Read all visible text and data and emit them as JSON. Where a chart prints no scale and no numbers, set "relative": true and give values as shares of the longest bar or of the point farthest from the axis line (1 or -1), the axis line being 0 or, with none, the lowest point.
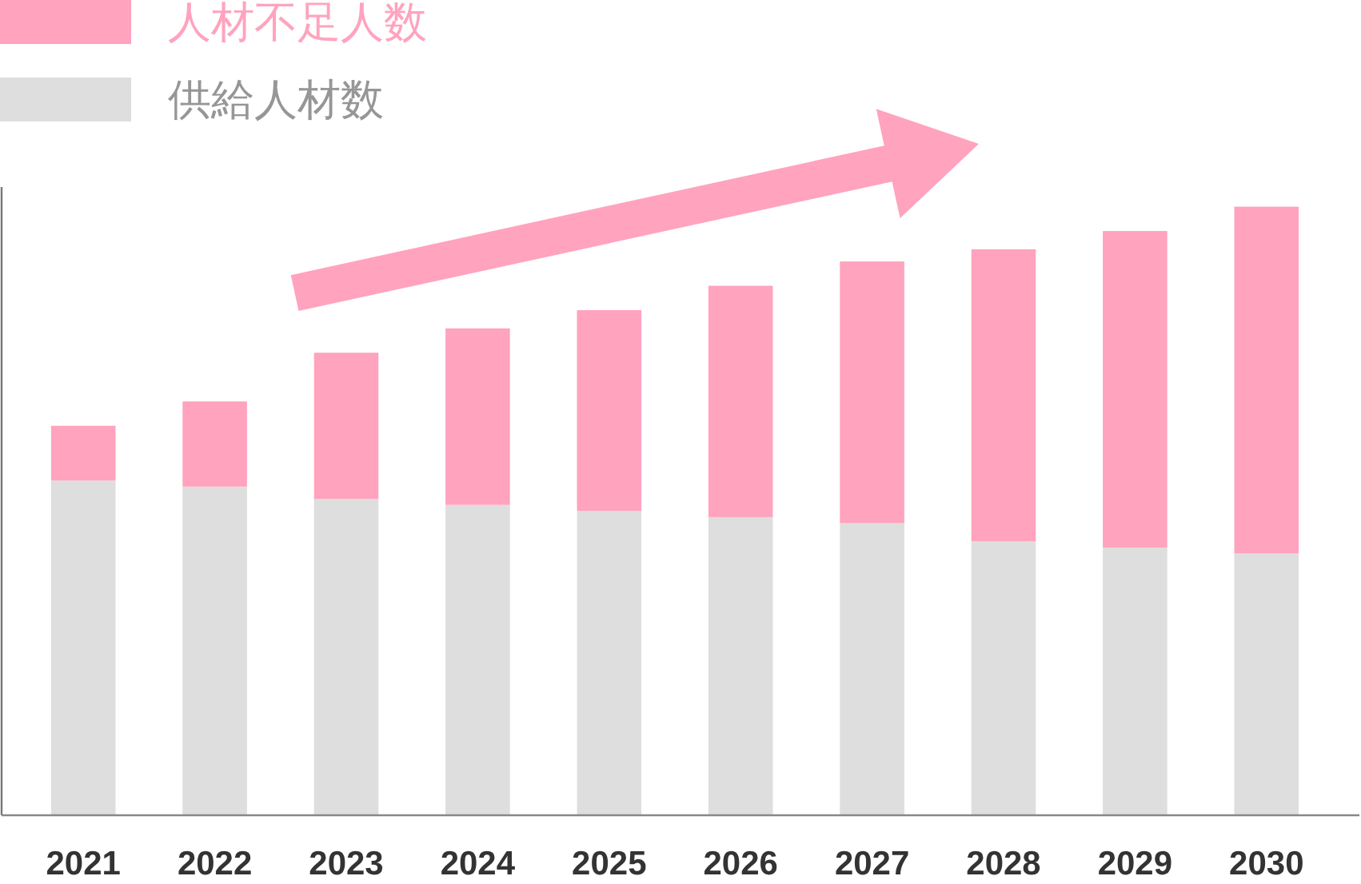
{
  "chart_data": {
    "type": "bar",
    "stacked": true,
    "relative": true,
    "legend": "top left",
    "categories": [
      "2021",
      "2022",
      "2023",
      "2024",
      "2025",
      "2026",
      "2027",
      "2028",
      "2029",
      "2030"
    ],
    "series": [
      {
        "name": "供給人材数",
        "color": "#dedede",
        "values": [
          0.55,
          0.54,
          0.52,
          0.51,
          0.5,
          0.49,
          0.48,
          0.45,
          0.44,
          0.43
        ]
      },
      {
        "name": "人材不足人数",
        "color": "#ffa3be",
        "values": [
          0.09,
          0.14,
          0.24,
          0.29,
          0.33,
          0.38,
          0.43,
          0.48,
          0.52,
          0.57
        ]
      }
    ]
  }
}
